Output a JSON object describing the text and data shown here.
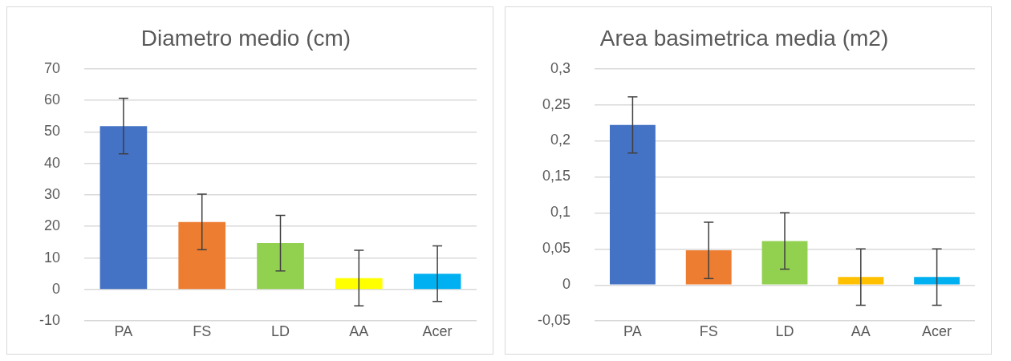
{
  "chart_data": [
    {
      "type": "bar",
      "title": "Diametro medio (cm)",
      "categories": [
        "PA",
        "FS",
        "LD",
        "AA",
        "Acer"
      ],
      "values": [
        51.8,
        21.4,
        14.7,
        3.6,
        5.0
      ],
      "colors": [
        "#4472c4",
        "#ed7d31",
        "#92d050",
        "#ffff00",
        "#00b0f0"
      ],
      "errors": [
        8.8,
        8.8,
        8.8,
        8.8,
        8.8
      ],
      "ylim": [
        -10,
        70
      ],
      "yticks": [
        -10,
        0,
        10,
        20,
        30,
        40,
        50,
        60,
        70
      ],
      "grid": "y",
      "legend": false
    },
    {
      "type": "bar",
      "title": "Area basimetrica media (m2)",
      "categories": [
        "PA",
        "FS",
        "LD",
        "AA",
        "Acer"
      ],
      "values": [
        0.222,
        0.048,
        0.061,
        0.011,
        0.011
      ],
      "colors": [
        "#4472c4",
        "#ed7d31",
        "#92d050",
        "#ffc000",
        "#00b0f0"
      ],
      "errors": [
        0.039,
        0.039,
        0.039,
        0.039,
        0.039
      ],
      "ylim": [
        -0.05,
        0.3
      ],
      "yticks": [
        {
          "value": -0.05,
          "label": "-0,05"
        },
        {
          "value": 0,
          "label": "0"
        },
        {
          "value": 0.05,
          "label": "0,05"
        },
        {
          "value": 0.1,
          "label": "0,1"
        },
        {
          "value": 0.15,
          "label": "0,15"
        },
        {
          "value": 0.2,
          "label": "0,2"
        },
        {
          "value": 0.25,
          "label": "0,25"
        },
        {
          "value": 0.3,
          "label": "0,3"
        }
      ],
      "grid": "y",
      "legend": false
    }
  ]
}
